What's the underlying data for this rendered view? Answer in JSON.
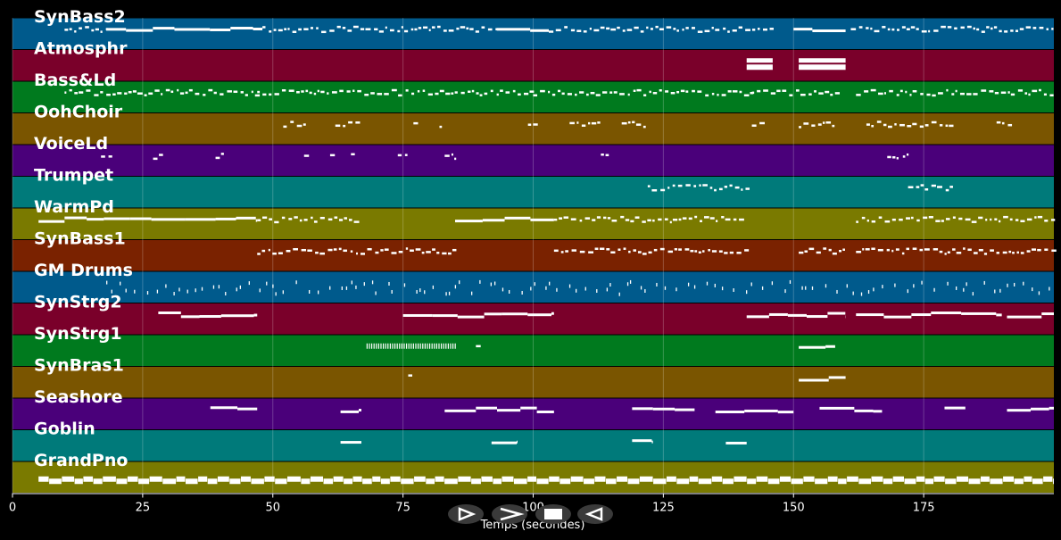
{
  "axis": {
    "title": "Temps (secondes)",
    "min": 0,
    "max": 200,
    "ticks": [
      0,
      25,
      50,
      75,
      100,
      125,
      150,
      175
    ],
    "tick_labels": [
      "0",
      "25",
      "50",
      "75",
      "100",
      "125",
      "150",
      "175"
    ]
  },
  "controls": [
    {
      "name": "play-button",
      "icon": "play-icon"
    },
    {
      "name": "fast-forward-button",
      "icon": "fast-forward-icon"
    },
    {
      "name": "stop-button",
      "icon": "stop-icon"
    },
    {
      "name": "rewind-button",
      "icon": "rewind-icon"
    }
  ],
  "tracks": [
    {
      "name": "SynBass2",
      "color": "#005a8c",
      "segments": [
        [
          10,
          18,
          "dense"
        ],
        [
          18,
          48,
          "line"
        ],
        [
          48,
          93,
          "dots"
        ],
        [
          93,
          103,
          "line"
        ],
        [
          103,
          146,
          "dots"
        ],
        [
          150,
          160,
          "line"
        ],
        [
          161,
          200,
          "dots"
        ]
      ]
    },
    {
      "name": "Atmosphr",
      "color": "#7a002a",
      "segments": [
        [
          141,
          146,
          "block"
        ],
        [
          151,
          160,
          "block"
        ]
      ]
    },
    {
      "name": "Bass&Ld",
      "color": "#007a1e",
      "segments": [
        [
          10,
          47,
          "dots"
        ],
        [
          47,
          70,
          "dots"
        ],
        [
          70,
          100,
          "dots"
        ],
        [
          100,
          142,
          "dots"
        ],
        [
          142,
          158,
          "dots"
        ],
        [
          162,
          200,
          "dots"
        ]
      ]
    },
    {
      "name": "OohChoir",
      "color": "#7a5500",
      "segments": [
        [
          52,
          56,
          "dots"
        ],
        [
          62,
          66,
          "dots"
        ],
        [
          77,
          78,
          "dots"
        ],
        [
          82,
          83,
          "dots"
        ],
        [
          99,
          101,
          "dots"
        ],
        [
          107,
          113,
          "dots"
        ],
        [
          117,
          122,
          "dots"
        ],
        [
          142,
          144,
          "dots"
        ],
        [
          151,
          158,
          "dots"
        ],
        [
          164,
          180,
          "dots"
        ],
        [
          189,
          192,
          "dots"
        ]
      ]
    },
    {
      "name": "VoiceLd",
      "color": "#4a007a",
      "segments": [
        [
          17,
          19,
          "dots"
        ],
        [
          27,
          29,
          "dots"
        ],
        [
          39,
          41,
          "dots"
        ],
        [
          56,
          57,
          "dots"
        ],
        [
          61,
          62,
          "dots"
        ],
        [
          65,
          66,
          "dots"
        ],
        [
          74,
          76,
          "dots"
        ],
        [
          83,
          85,
          "dots"
        ],
        [
          113,
          114,
          "dots"
        ],
        [
          168,
          170,
          "dots"
        ],
        [
          171,
          172,
          "dots"
        ]
      ]
    },
    {
      "name": "Trumpet",
      "color": "#007a7a",
      "segments": [
        [
          122,
          141,
          "dots"
        ],
        [
          172,
          181,
          "dots"
        ]
      ]
    },
    {
      "name": "WarmPd",
      "color": "#7a7a00",
      "segments": [
        [
          5,
          47,
          "line"
        ],
        [
          47,
          66,
          "dots"
        ],
        [
          85,
          104,
          "line"
        ],
        [
          104,
          141,
          "dots"
        ],
        [
          162,
          200,
          "dots"
        ]
      ]
    },
    {
      "name": "SynBass1",
      "color": "#7a2200",
      "segments": [
        [
          47,
          85,
          "dots"
        ],
        [
          104,
          141,
          "dots"
        ],
        [
          151,
          160,
          "dots"
        ],
        [
          162,
          200,
          "dots"
        ]
      ]
    },
    {
      "name": "GM Drums",
      "color": "#005a8c",
      "segments": [
        [
          18,
          200,
          "drums"
        ]
      ]
    },
    {
      "name": "SynStrg2",
      "color": "#7a002a",
      "segments": [
        [
          28,
          47,
          "line"
        ],
        [
          75,
          104,
          "line"
        ],
        [
          141,
          160,
          "line"
        ],
        [
          162,
          190,
          "line"
        ],
        [
          191,
          200,
          "line"
        ]
      ]
    },
    {
      "name": "SynStrg1",
      "color": "#007a1e",
      "segments": [
        [
          68,
          85,
          "ticks"
        ],
        [
          89,
          90,
          "dots"
        ],
        [
          151,
          158,
          "line"
        ]
      ]
    },
    {
      "name": "SynBras1",
      "color": "#7a5500",
      "segments": [
        [
          76,
          77,
          "dots"
        ],
        [
          151,
          160,
          "line"
        ]
      ]
    },
    {
      "name": "Seashore",
      "color": "#4a007a",
      "segments": [
        [
          38,
          47,
          "line"
        ],
        [
          63,
          67,
          "line"
        ],
        [
          83,
          89,
          "line"
        ],
        [
          89,
          104,
          "line"
        ],
        [
          119,
          131,
          "line"
        ],
        [
          135,
          150,
          "line"
        ],
        [
          155,
          167,
          "line"
        ],
        [
          179,
          183,
          "line"
        ],
        [
          191,
          200,
          "line"
        ]
      ]
    },
    {
      "name": "Goblin",
      "color": "#007a7a",
      "segments": [
        [
          63,
          67,
          "line"
        ],
        [
          92,
          97,
          "line"
        ],
        [
          119,
          123,
          "line"
        ],
        [
          137,
          141,
          "line"
        ]
      ]
    },
    {
      "name": "GrandPno",
      "color": "#7a7a00",
      "segments": [
        [
          5,
          200,
          "piano"
        ]
      ]
    }
  ]
}
